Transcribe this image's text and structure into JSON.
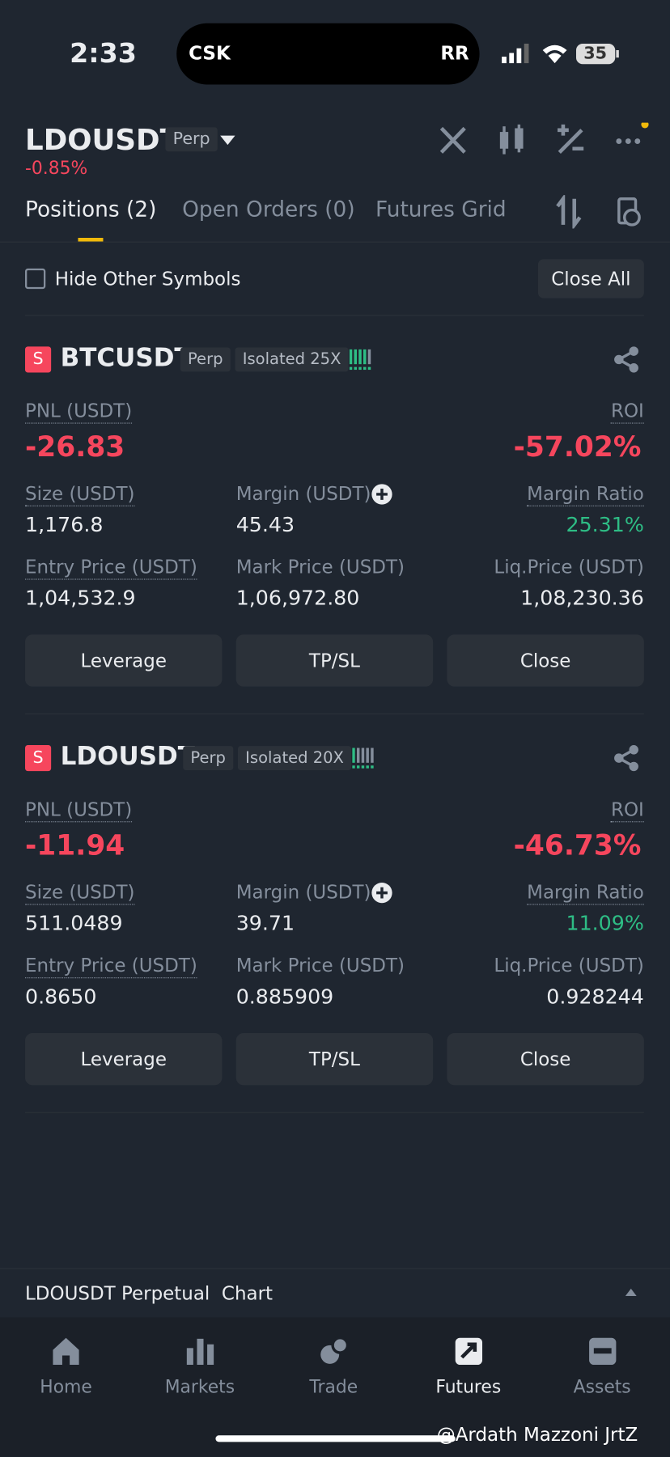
{
  "status": {
    "time": "2:33",
    "island_left": "CSK",
    "island_right": "RR",
    "battery": "35"
  },
  "header": {
    "symbol": "LDOUSDT",
    "tag": "Perp",
    "change": "-0.85%"
  },
  "tabs": [
    "Positions (2)",
    "Open Orders (0)",
    "Futures Grid"
  ],
  "filter": {
    "label": "Hide Other Symbols",
    "button": "Close All"
  },
  "positions": [
    {
      "badge": "S",
      "symbol": "BTCUSDT",
      "type": "Perp",
      "mode": "Isolated 25X",
      "pnl_label": "PNL (USDT)",
      "pnl": "-26.83",
      "roi_label": "ROI",
      "roi": "-57.02%",
      "fields": [
        {
          "label": "Size (USDT)",
          "value": "1,176.8"
        },
        {
          "label": "Margin (USDT)",
          "value": "45.43"
        },
        {
          "label": "Margin Ratio",
          "value": "25.31%"
        },
        {
          "label": "Entry Price (USDT)",
          "value": "1,04,532.9"
        },
        {
          "label": "Mark Price (USDT)",
          "value": "1,06,972.80"
        },
        {
          "label": "Liq.Price (USDT)",
          "value": "1,08,230.36"
        }
      ],
      "buttons": [
        "Leverage",
        "TP/SL",
        "Close"
      ]
    },
    {
      "badge": "S",
      "symbol": "LDOUSDT",
      "type": "Perp",
      "mode": "Isolated 20X",
      "pnl_label": "PNL (USDT)",
      "pnl": "-11.94",
      "roi_label": "ROI",
      "roi": "-46.73%",
      "fields": [
        {
          "label": "Size (USDT)",
          "value": "511.0489"
        },
        {
          "label": "Margin (USDT)",
          "value": "39.71"
        },
        {
          "label": "Margin Ratio",
          "value": "11.09%"
        },
        {
          "label": "Entry Price (USDT)",
          "value": "0.8650"
        },
        {
          "label": "Mark Price (USDT)",
          "value": "0.885909"
        },
        {
          "label": "Liq.Price (USDT)",
          "value": "0.928244"
        }
      ],
      "buttons": [
        "Leverage",
        "TP/SL",
        "Close"
      ]
    }
  ],
  "chart_bar": "LDOUSDT Perpetual  Chart",
  "nav": [
    "Home",
    "Markets",
    "Trade",
    "Futures",
    "Assets"
  ],
  "watermark": "@Ardath Mazzoni JrtZ"
}
